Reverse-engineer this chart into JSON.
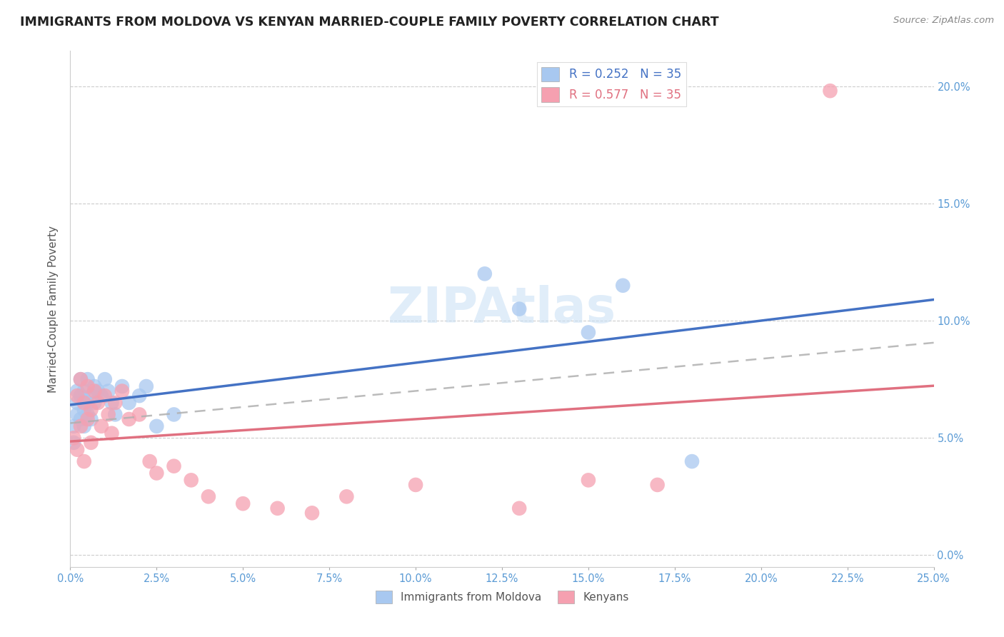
{
  "title": "IMMIGRANTS FROM MOLDOVA VS KENYAN MARRIED-COUPLE FAMILY POVERTY CORRELATION CHART",
  "source": "Source: ZipAtlas.com",
  "ylabel": "Married-Couple Family Poverty",
  "legend_labels": [
    "Immigrants from Moldova",
    "Kenyans"
  ],
  "r_moldova": 0.252,
  "r_kenya": 0.577,
  "n": 35,
  "blue_color": "#a8c8f0",
  "pink_color": "#f5a0b0",
  "blue_line_color": "#4472c4",
  "pink_line_color": "#e07080",
  "dash_color": "#b0b0b0",
  "xlim": [
    0.0,
    0.25
  ],
  "ylim": [
    -0.005,
    0.215
  ],
  "yticks": [
    0.0,
    0.05,
    0.1,
    0.15,
    0.2
  ],
  "xticks": [
    0.0,
    0.025,
    0.05,
    0.075,
    0.1,
    0.125,
    0.15,
    0.175,
    0.2,
    0.225,
    0.25
  ],
  "moldova_x": [
    0.001,
    0.001,
    0.002,
    0.002,
    0.002,
    0.003,
    0.003,
    0.003,
    0.004,
    0.004,
    0.004,
    0.005,
    0.005,
    0.005,
    0.006,
    0.006,
    0.007,
    0.007,
    0.008,
    0.009,
    0.01,
    0.011,
    0.012,
    0.013,
    0.015,
    0.017,
    0.02,
    0.022,
    0.025,
    0.03,
    0.12,
    0.13,
    0.15,
    0.16,
    0.18
  ],
  "moldova_y": [
    0.048,
    0.055,
    0.06,
    0.065,
    0.07,
    0.058,
    0.068,
    0.075,
    0.055,
    0.062,
    0.07,
    0.065,
    0.06,
    0.075,
    0.068,
    0.058,
    0.072,
    0.065,
    0.07,
    0.068,
    0.075,
    0.07,
    0.065,
    0.06,
    0.072,
    0.065,
    0.068,
    0.072,
    0.055,
    0.06,
    0.12,
    0.105,
    0.095,
    0.115,
    0.04
  ],
  "kenya_x": [
    0.001,
    0.002,
    0.002,
    0.003,
    0.003,
    0.004,
    0.004,
    0.005,
    0.005,
    0.006,
    0.006,
    0.007,
    0.008,
    0.009,
    0.01,
    0.011,
    0.012,
    0.013,
    0.015,
    0.017,
    0.02,
    0.023,
    0.025,
    0.03,
    0.035,
    0.04,
    0.05,
    0.06,
    0.07,
    0.08,
    0.1,
    0.13,
    0.15,
    0.17,
    0.22
  ],
  "kenya_y": [
    0.05,
    0.045,
    0.068,
    0.055,
    0.075,
    0.04,
    0.065,
    0.058,
    0.072,
    0.048,
    0.062,
    0.07,
    0.065,
    0.055,
    0.068,
    0.06,
    0.052,
    0.065,
    0.07,
    0.058,
    0.06,
    0.04,
    0.035,
    0.038,
    0.032,
    0.025,
    0.022,
    0.02,
    0.018,
    0.025,
    0.03,
    0.02,
    0.032,
    0.03,
    0.198
  ]
}
